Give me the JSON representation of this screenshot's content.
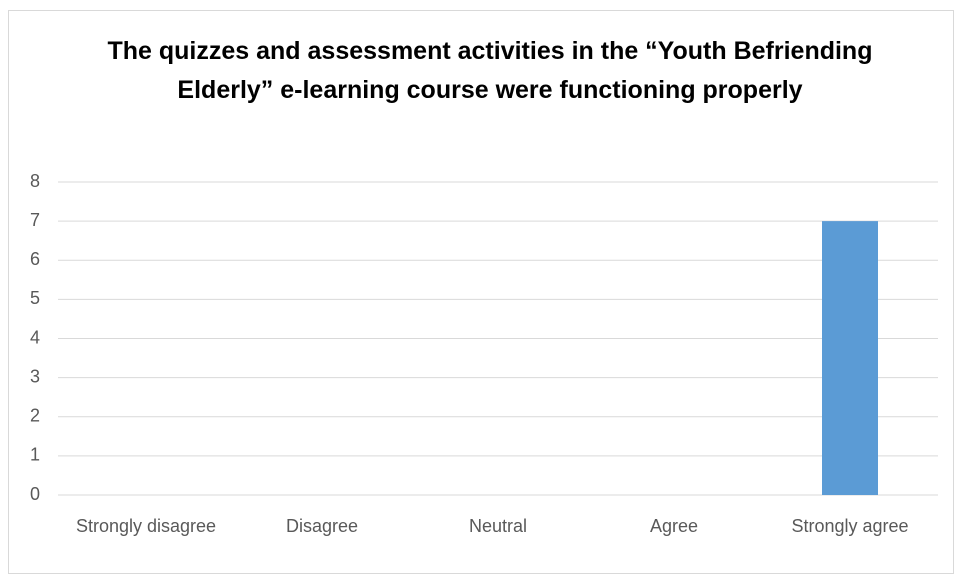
{
  "chart_data": {
    "type": "bar",
    "title": "The quizzes and assessment activities in the “Youth Befriending Elderly” e-learning course were functioning properly",
    "categories": [
      "Strongly disagree",
      "Disagree",
      "Neutral",
      "Agree",
      "Strongly agree"
    ],
    "values": [
      0,
      0,
      0,
      0,
      7
    ],
    "color": "#5b9bd5",
    "ylim": [
      0,
      8
    ],
    "yticks": [
      0,
      1,
      2,
      3,
      4,
      5,
      6,
      7,
      8
    ],
    "grid": true
  }
}
